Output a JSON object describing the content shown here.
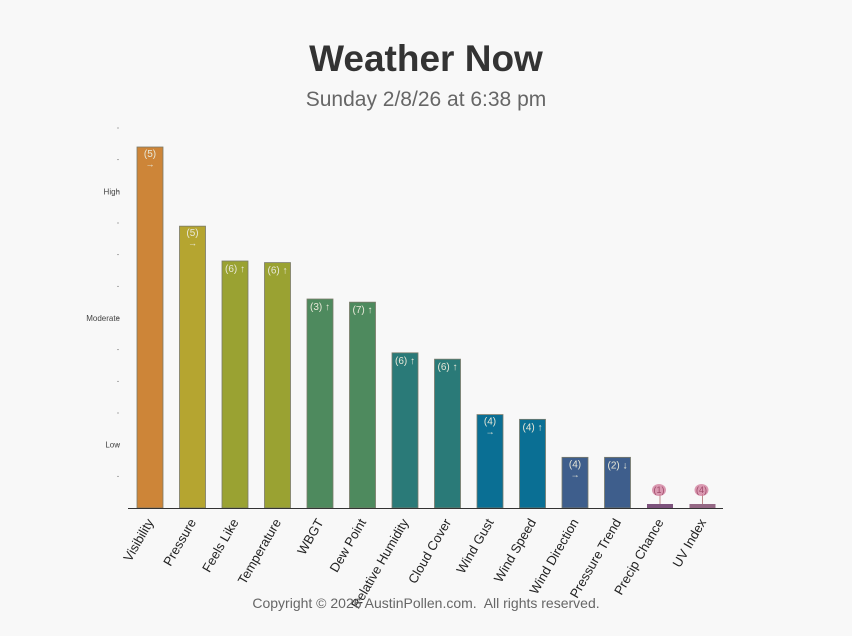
{
  "header": {
    "title": "Weather Now",
    "subtitle": "Sunday 2/8/26 at 6:38 pm"
  },
  "footer": {
    "copyright": "Copyright © 2026 AustinPollen.com.  All rights reserved."
  },
  "chart_data": {
    "type": "bar",
    "title": "Weather Now",
    "subtitle": "Sunday 2/8/26 at 6:38 pm",
    "xlabel": "",
    "ylabel": "",
    "ylim": [
      0,
      12
    ],
    "y_ticks": [
      {
        "value": 2,
        "label": "Low"
      },
      {
        "value": 6,
        "label": "Moderate"
      },
      {
        "value": 10,
        "label": "High"
      }
    ],
    "grid": false,
    "categories": [
      "Visibility",
      "Pressure",
      "Feels Like",
      "Temperature",
      "WBGT",
      "Dew Point",
      "Relative Humidity",
      "Cloud Cover",
      "Wind Gust",
      "Wind Speed",
      "Wind Direction",
      "Pressure Trend",
      "Precip Chance",
      "UV Index"
    ],
    "values": [
      11.4,
      8.9,
      7.8,
      7.75,
      6.6,
      6.5,
      4.9,
      4.7,
      2.95,
      2.8,
      1.6,
      1.6,
      0.1,
      0.0
    ],
    "labels": [
      "(5)",
      "(5)",
      "(6)",
      "(6)",
      "(3)",
      "(7)",
      "(6)",
      "(6)",
      "(4)",
      "(4)",
      "(4)",
      "(2)",
      "(1)",
      "(4)"
    ],
    "trends": [
      "→",
      "→",
      "↑",
      "↑",
      "↑",
      "↑",
      "↑",
      "↑",
      "→",
      "↑",
      "→",
      "↓",
      "↑",
      "↑"
    ],
    "colors": [
      "#cd8538",
      "#b5a530",
      "#9aa232",
      "#9aa232",
      "#4e8a5e",
      "#4e8a5e",
      "#2a7a78",
      "#2a7a78",
      "#0a6f94",
      "#0a6f94",
      "#3e5e8c",
      "#3e5e8c",
      "#6e3f6e",
      "#8a5878"
    ]
  }
}
